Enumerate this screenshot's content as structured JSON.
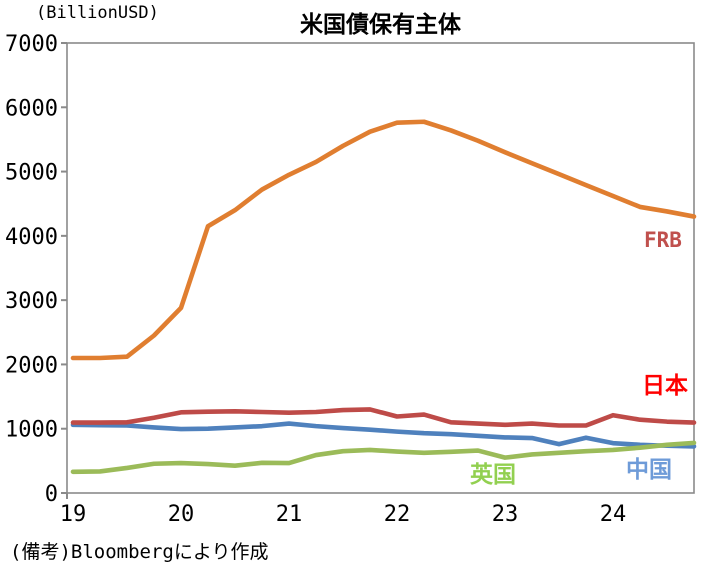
{
  "chart_data": {
    "type": "line",
    "title": "米国債保有主体",
    "unit_label": "(BillionUSD)",
    "source_note": "(備考)Bloombergにより作成",
    "ylim": [
      0,
      7000
    ],
    "ytick_interval": 1000,
    "x_tick_labels": [
      "19",
      "20",
      "21",
      "22",
      "23",
      "24"
    ],
    "x": [
      "19Q1",
      "19Q2",
      "19Q3",
      "19Q4",
      "20Q1",
      "20Q2",
      "20Q3",
      "20Q4",
      "21Q1",
      "21Q2",
      "21Q3",
      "21Q4",
      "22Q1",
      "22Q2",
      "22Q3",
      "22Q4",
      "23Q1",
      "23Q2",
      "23Q3",
      "23Q4",
      "24Q1",
      "24Q2",
      "24Q3",
      "24Q4"
    ],
    "grid": false,
    "legend_position": "inline-labels",
    "axis_color": "#8a8a8a",
    "text_color": "#000000",
    "series": [
      {
        "name": "FRB",
        "color": "#e07e30",
        "label_color": "#c0504d",
        "values": [
          2100,
          2100,
          2120,
          2450,
          2880,
          4150,
          4400,
          4720,
          4950,
          5150,
          5400,
          5620,
          5760,
          5775,
          5640,
          5480,
          5300,
          5130,
          4960,
          4790,
          4620,
          4450,
          4380,
          4300
        ]
      },
      {
        "name": "日本",
        "color": "#be4b48",
        "label_color": "#ff0000",
        "values": [
          1095,
          1095,
          1100,
          1170,
          1255,
          1265,
          1270,
          1260,
          1250,
          1260,
          1290,
          1300,
          1190,
          1220,
          1100,
          1080,
          1060,
          1080,
          1050,
          1050,
          1210,
          1140,
          1110,
          1095
        ]
      },
      {
        "name": "中国",
        "color": "#4f81bd",
        "label_color": "#6e9bd8",
        "values": [
          1060,
          1055,
          1050,
          1020,
          995,
          1000,
          1020,
          1040,
          1080,
          1040,
          1010,
          985,
          955,
          930,
          915,
          890,
          865,
          855,
          760,
          860,
          775,
          750,
          735,
          725
        ]
      },
      {
        "name": "英国",
        "color": "#9bbb59",
        "label_color": "#92d050",
        "values": [
          330,
          335,
          390,
          455,
          465,
          450,
          425,
          470,
          465,
          590,
          650,
          670,
          645,
          625,
          640,
          660,
          550,
          600,
          625,
          650,
          670,
          705,
          750,
          780
        ]
      }
    ]
  }
}
